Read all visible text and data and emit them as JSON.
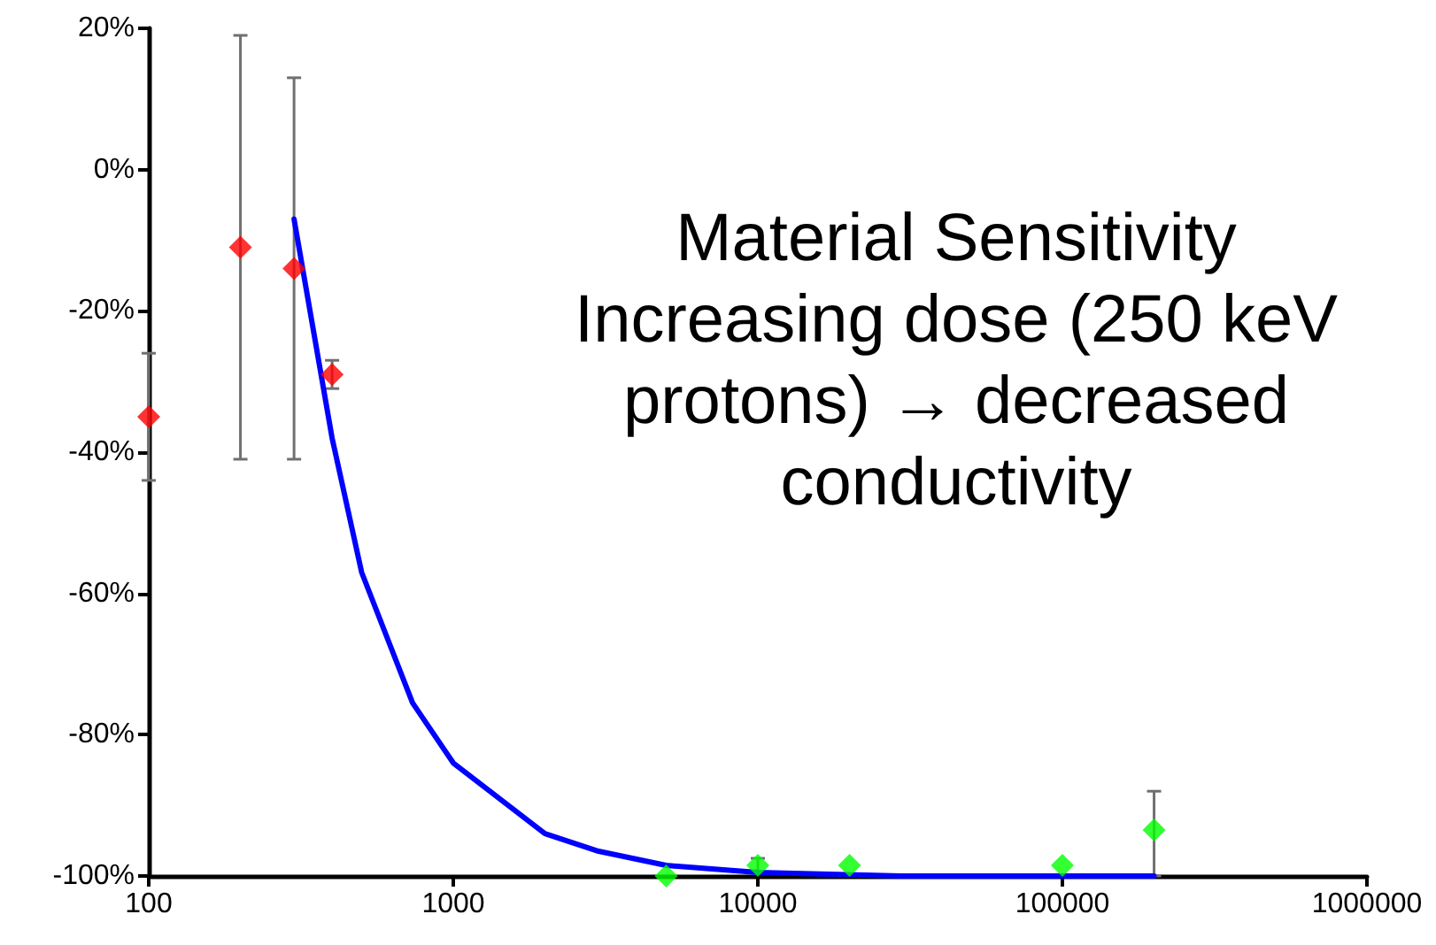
{
  "chart_data": {
    "type": "scatter",
    "log": "x",
    "grid": false,
    "marker": "diamond",
    "xlim": [
      100,
      1000000
    ],
    "xticks": [
      100,
      1000,
      10000,
      100000,
      1000000
    ],
    "ylim": [
      -100,
      20
    ],
    "yticks": [
      {
        "value": 20,
        "label": "20%"
      },
      {
        "value": 0,
        "label": "0%"
      },
      {
        "value": -20,
        "label": "-20%"
      },
      {
        "value": -40,
        "label": "-40%"
      },
      {
        "value": -60,
        "label": "-60%"
      },
      {
        "value": -80,
        "label": "-80%"
      },
      {
        "value": -100,
        "label": "-100%"
      }
    ],
    "series": [
      {
        "color": "#ff0000",
        "x": [
          100,
          200,
          300,
          400
        ],
        "values": [
          -35,
          -11,
          -14,
          -29
        ],
        "errors": [
          9,
          [
            -41,
            19
          ],
          [
            -41,
            13
          ],
          [
            -31,
            -27
          ]
        ]
      },
      {
        "color": "#00ff00",
        "x": [
          5000,
          10000,
          20000,
          100000,
          200000
        ],
        "values": [
          -100,
          -98.5,
          -98.5,
          -98.5,
          -93.5
        ],
        "errors": [
          null,
          1,
          null,
          null,
          [
            -100,
            -88
          ]
        ]
      },
      {
        "type": "line",
        "color": "#0000ff",
        "marker": "none",
        "x": [
          300,
          400,
          500,
          735,
          1000,
          2000,
          3000,
          5000,
          10000,
          30000,
          200000
        ],
        "values": [
          -7,
          -38,
          -57,
          -75.5,
          -84,
          -94,
          -96.5,
          -98.5,
          -99.5,
          -100,
          -100
        ]
      }
    ],
    "annotations": [
      "Material Sensitivity",
      "Increasing dose (250 keV protons) → decreased conductivity"
    ]
  }
}
